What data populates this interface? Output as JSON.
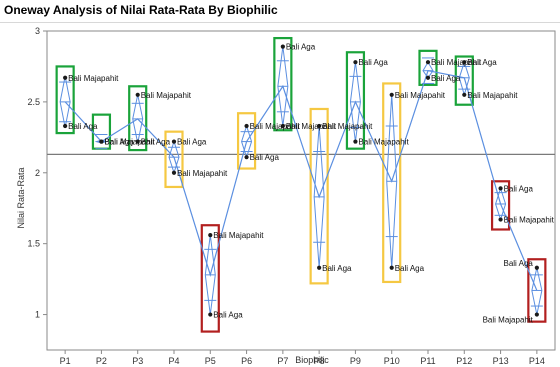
{
  "chart_data": {
    "type": "scatter",
    "title": "Oneway Analysis of Nilai Rata-Rata By Biophilic",
    "xlabel": "Biophilic",
    "ylabel": "Nilai Rata-Rata",
    "ylim": [
      0.75,
      3.0
    ],
    "yticks": [
      "1",
      "1.5",
      "2",
      "2.5",
      "3"
    ],
    "categories": [
      "P1",
      "P2",
      "P3",
      "P4",
      "P5",
      "P6",
      "P7",
      "P8",
      "P9",
      "P10",
      "P11",
      "P12",
      "P13",
      "P14"
    ],
    "grand_mean": 2.13,
    "groups": [
      {
        "category": "P1",
        "mean": 2.5,
        "diamond_low": 2.32,
        "diamond_high": 2.68,
        "ci_low": 2.36,
        "ci_high": 2.64,
        "box_color": "#1aa33a",
        "box_low": 2.28,
        "box_high": 2.75,
        "points": [
          {
            "label": "Bali Majapahit",
            "value": 2.67
          },
          {
            "label": "Bali Aga",
            "value": 2.33
          }
        ]
      },
      {
        "category": "P2",
        "mean": 2.22,
        "diamond_low": 2.21,
        "diamond_high": 2.23,
        "ci_low": 2.17,
        "ci_high": 2.27,
        "box_color": "#1aa33a",
        "box_low": 2.17,
        "box_high": 2.41,
        "points": [
          {
            "label": "Bali Aga",
            "value": 2.22
          },
          {
            "label": "Bali Majapahit",
            "value": 2.22
          }
        ]
      },
      {
        "category": "P3",
        "mean": 2.38,
        "diamond_low": 2.21,
        "diamond_high": 2.55,
        "ci_low": 2.27,
        "ci_high": 2.49,
        "box_color": "#1aa33a",
        "box_low": 2.16,
        "box_high": 2.61,
        "points": [
          {
            "label": "Bali Majapahit",
            "value": 2.55
          },
          {
            "label": "Bali Aga",
            "value": 2.22
          }
        ]
      },
      {
        "category": "P4",
        "mean": 2.11,
        "diamond_low": 2.0,
        "diamond_high": 2.22,
        "ci_low": 2.04,
        "ci_high": 2.18,
        "box_color": "#f5c842",
        "box_low": 1.9,
        "box_high": 2.29,
        "points": [
          {
            "label": "Bali Aga",
            "value": 2.22
          },
          {
            "label": "Bali Majapahit",
            "value": 2.0
          }
        ]
      },
      {
        "category": "P5",
        "mean": 1.28,
        "diamond_low": 1.0,
        "diamond_high": 1.56,
        "ci_low": 1.1,
        "ci_high": 1.46,
        "box_color": "#b21f1f",
        "box_low": 0.88,
        "box_high": 1.63,
        "points": [
          {
            "label": "Bali Majapahit",
            "value": 1.56
          },
          {
            "label": "Bali Aga",
            "value": 1.0
          }
        ]
      },
      {
        "category": "P6",
        "mean": 2.22,
        "diamond_low": 2.11,
        "diamond_high": 2.33,
        "ci_low": 2.15,
        "ci_high": 2.29,
        "box_color": "#f5c842",
        "box_low": 2.03,
        "box_high": 2.42,
        "points": [
          {
            "label": "Bali Majapahit",
            "value": 2.33
          },
          {
            "label": "Bali Aga",
            "value": 2.11
          }
        ]
      },
      {
        "category": "P7",
        "mean": 2.61,
        "diamond_low": 2.33,
        "diamond_high": 2.89,
        "ci_low": 2.43,
        "ci_high": 2.79,
        "box_color": "#1aa33a",
        "box_low": 2.3,
        "box_high": 2.95,
        "points": [
          {
            "label": "Bali Aga",
            "value": 2.89
          },
          {
            "label": "Bali Majapahit",
            "value": 2.33
          }
        ]
      },
      {
        "category": "P8",
        "mean": 1.83,
        "diamond_low": 1.33,
        "diamond_high": 2.33,
        "ci_low": 1.51,
        "ci_high": 2.15,
        "box_color": "#f5c842",
        "box_low": 1.22,
        "box_high": 2.45,
        "points": [
          {
            "label": "Bali Majapahit",
            "value": 2.33
          },
          {
            "label": "Bali Aga",
            "value": 1.33
          }
        ]
      },
      {
        "category": "P9",
        "mean": 2.5,
        "diamond_low": 2.22,
        "diamond_high": 2.78,
        "ci_low": 2.32,
        "ci_high": 2.68,
        "box_color": "#1aa33a",
        "box_low": 2.17,
        "box_high": 2.85,
        "points": [
          {
            "label": "Bali Aga",
            "value": 2.78
          },
          {
            "label": "Bali Majapahit",
            "value": 2.22
          }
        ]
      },
      {
        "category": "P10",
        "mean": 1.94,
        "diamond_low": 1.33,
        "diamond_high": 2.55,
        "ci_low": 1.55,
        "ci_high": 2.33,
        "box_color": "#f5c842",
        "box_low": 1.23,
        "box_high": 2.63,
        "points": [
          {
            "label": "Bali Majapahit",
            "value": 2.55
          },
          {
            "label": "Bali Aga",
            "value": 1.33
          }
        ]
      },
      {
        "category": "P11",
        "mean": 2.72,
        "diamond_low": 2.67,
        "diamond_high": 2.78,
        "ci_low": 2.63,
        "ci_high": 2.81,
        "box_color": "#1aa33a",
        "box_low": 2.62,
        "box_high": 2.86,
        "points": [
          {
            "label": "Bali Majapahit",
            "value": 2.78
          },
          {
            "label": "Bali Aga",
            "value": 2.67
          }
        ]
      },
      {
        "category": "P12",
        "mean": 2.67,
        "diamond_low": 2.55,
        "diamond_high": 2.78,
        "ci_low": 2.59,
        "ci_high": 2.75,
        "box_color": "#1aa33a",
        "box_low": 2.48,
        "box_high": 2.82,
        "points": [
          {
            "label": "Bali Aga",
            "value": 2.78
          },
          {
            "label": "Bali Majapahit",
            "value": 2.55
          }
        ]
      },
      {
        "category": "P13",
        "mean": 1.78,
        "diamond_low": 1.67,
        "diamond_high": 1.89,
        "ci_low": 1.7,
        "ci_high": 1.86,
        "box_color": "#b21f1f",
        "box_low": 1.6,
        "box_high": 1.94,
        "points": [
          {
            "label": "Bali Aga",
            "value": 1.89
          },
          {
            "label": "Bali Majapahit",
            "value": 1.67
          }
        ]
      },
      {
        "category": "P14",
        "mean": 1.17,
        "diamond_low": 1.0,
        "diamond_high": 1.33,
        "ci_low": 1.06,
        "ci_high": 1.28,
        "box_color": "#b21f1f",
        "box_low": 0.95,
        "box_high": 1.39,
        "points": [
          {
            "label": "Bali Aga",
            "value": 1.33
          },
          {
            "label": "Bali Majapahit",
            "value": 1.0
          }
        ]
      }
    ],
    "colors": {
      "mean_line": "#5b8fe0",
      "grand_mean_line": "#7a7a7a",
      "point": "#1a1a1a",
      "axis": "#8a8a8a"
    }
  }
}
